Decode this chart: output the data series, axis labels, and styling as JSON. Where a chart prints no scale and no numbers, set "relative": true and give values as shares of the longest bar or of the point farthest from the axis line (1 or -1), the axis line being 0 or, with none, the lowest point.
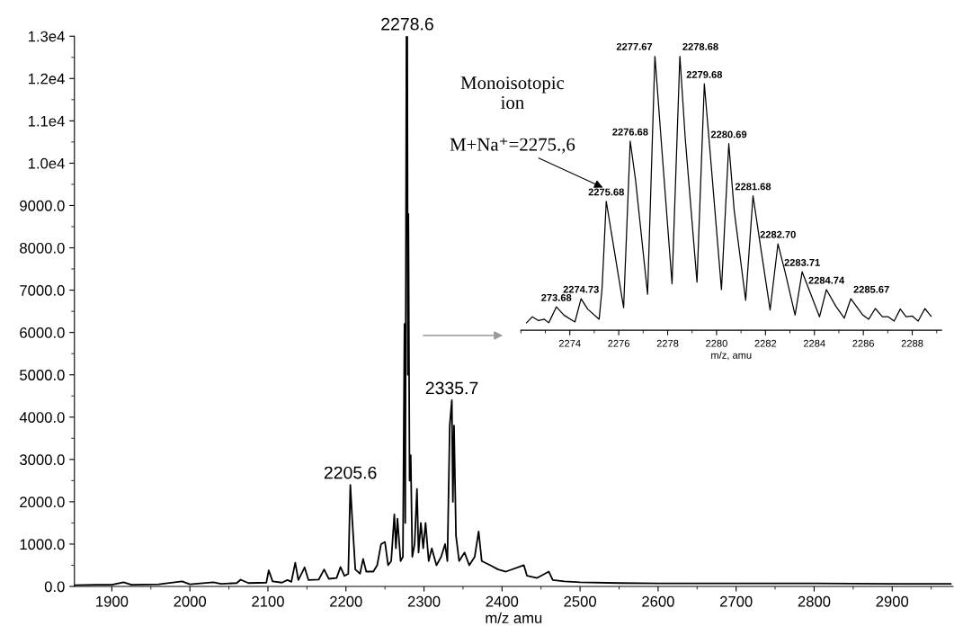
{
  "chart_data": [
    {
      "type": "line",
      "xlabel": "m/z amu",
      "xlim": [
        1852,
        2978
      ],
      "xticks": [
        1900,
        2000,
        2100,
        2200,
        2300,
        2400,
        2500,
        2600,
        2700,
        2800,
        2900
      ],
      "ylim": [
        0,
        13000
      ],
      "yticks": [
        {
          "value": 0,
          "label": "0.0"
        },
        {
          "value": 1000,
          "label": "1000.0"
        },
        {
          "value": 2000,
          "label": "2000.0"
        },
        {
          "value": 3000,
          "label": "3000.0"
        },
        {
          "value": 4000,
          "label": "4000.0"
        },
        {
          "value": 5000,
          "label": "5000.0"
        },
        {
          "value": 6000,
          "label": "6000.0"
        },
        {
          "value": 7000,
          "label": "7000.0"
        },
        {
          "value": 8000,
          "label": "8000.0"
        },
        {
          "value": 9000,
          "label": "9000.0"
        },
        {
          "value": 10000,
          "label": "1.0e4"
        },
        {
          "value": 11000,
          "label": "1.1e4"
        },
        {
          "value": 12000,
          "label": "1.2e4"
        },
        {
          "value": 13000,
          "label": "1.3e4"
        }
      ],
      "series": [
        {
          "color": "#000000",
          "x": [
            1852,
            1880,
            1900,
            1915,
            1925,
            1960,
            1990,
            2000,
            2030,
            2040,
            2060,
            2065,
            2075,
            2098,
            2101,
            2106,
            2118,
            2125,
            2130,
            2135,
            2139,
            2147,
            2152,
            2165,
            2172,
            2178,
            2188,
            2193,
            2198,
            2203,
            2205.6,
            2208,
            2212,
            2218,
            2222,
            2226,
            2235,
            2240,
            2245,
            2250,
            2254,
            2258,
            2262,
            2264,
            2266,
            2270,
            2273,
            2275,
            2276,
            2277.5,
            2278.6,
            2279.3,
            2280,
            2281.5,
            2283,
            2285,
            2288,
            2291,
            2293,
            2296,
            2299,
            2302,
            2306,
            2310,
            2316,
            2322,
            2327,
            2330,
            2333,
            2335.7,
            2337,
            2338.5,
            2341,
            2345,
            2352,
            2358,
            2365,
            2370,
            2374,
            2385,
            2395,
            2405,
            2428,
            2432,
            2445,
            2460,
            2465,
            2480,
            2500,
            2550,
            2600,
            2700,
            2800,
            2900,
            2975
          ],
          "values": [
            30,
            40,
            40,
            100,
            40,
            50,
            120,
            50,
            100,
            60,
            80,
            160,
            80,
            90,
            380,
            120,
            90,
            150,
            110,
            560,
            150,
            450,
            150,
            160,
            400,
            180,
            200,
            460,
            250,
            300,
            2400,
            1600,
            400,
            300,
            650,
            350,
            350,
            500,
            1000,
            1050,
            500,
            600,
            1700,
            900,
            1600,
            600,
            700,
            6200,
            1500,
            13000,
            13000,
            5000,
            8800,
            2500,
            3100,
            700,
            1000,
            2300,
            800,
            1500,
            900,
            1500,
            600,
            900,
            500,
            700,
            1000,
            600,
            3800,
            4400,
            2000,
            3800,
            1200,
            600,
            800,
            500,
            700,
            1300,
            600,
            500,
            400,
            350,
            500,
            250,
            200,
            350,
            150,
            120,
            100,
            80,
            70,
            70,
            70,
            60,
            60
          ]
        }
      ],
      "annotations": [
        {
          "text": "2278.6",
          "x": 2278.6,
          "y": 13000
        },
        {
          "text": "2205.6",
          "x": 2205.6,
          "y": 2400
        },
        {
          "text": "2335.7",
          "x": 2335.7,
          "y": 4400
        }
      ]
    },
    {
      "type": "line",
      "xlabel": "m/z, amu",
      "xlim": [
        2272.0,
        2289.2
      ],
      "xticks": [
        2274,
        2276,
        2278,
        2280,
        2282,
        2284,
        2286,
        2288
      ],
      "relative": true,
      "series": [
        {
          "color": "#000000",
          "x": [
            2272.23,
            2272.47,
            2272.72,
            2272.96,
            2273.14,
            2273.45,
            2273.76,
            2274.21,
            2274.46,
            2274.73,
            2275.2,
            2275.32,
            2275.49,
            2275.71,
            2276.2,
            2276.47,
            2276.69,
            2277.18,
            2277.48,
            2277.73,
            2278.18,
            2278.5,
            2278.72,
            2279.2,
            2279.5,
            2279.75,
            2280.2,
            2280.5,
            2280.72,
            2281.19,
            2281.49,
            2281.76,
            2282.19,
            2282.51,
            2282.8,
            2283.21,
            2283.5,
            2283.78,
            2284.21,
            2284.49,
            2284.88,
            2285.22,
            2285.49,
            2285.98,
            2286.22,
            2286.49,
            2286.78,
            2287.02,
            2287.26,
            2287.51,
            2287.75,
            2288.0,
            2288.24,
            2288.52,
            2288.77
          ],
          "values": [
            0.027,
            0.049,
            0.035,
            0.04,
            0.027,
            0.085,
            0.055,
            0.03,
            0.115,
            0.077,
            0.04,
            0.153,
            0.47,
            0.35,
            0.082,
            0.689,
            0.546,
            0.131,
            1.0,
            0.699,
            0.169,
            1.0,
            0.699,
            0.175,
            0.898,
            0.634,
            0.148,
            0.68,
            0.437,
            0.109,
            0.49,
            0.328,
            0.074,
            0.315,
            0.213,
            0.055,
            0.213,
            0.148,
            0.049,
            0.148,
            0.087,
            0.044,
            0.115,
            0.055,
            0.04,
            0.079,
            0.049,
            0.049,
            0.033,
            0.077,
            0.049,
            0.052,
            0.033,
            0.079,
            0.051
          ]
        }
      ],
      "annotations": [
        "Monoisotopic\nion",
        "M+Na⁺=2275.,6",
        {
          "text": "273.68",
          "x": 2273.45,
          "y": 0.085
        },
        {
          "text": "2274.73",
          "x": 2274.46,
          "y": 0.115
        },
        {
          "text": "2275.68",
          "x": 2275.49,
          "y": 0.47
        },
        {
          "text": "2276.68",
          "x": 2276.47,
          "y": 0.689
        },
        {
          "text": "2277.67",
          "x": 2277.48,
          "y": 1.0
        },
        {
          "text": "2278.68",
          "x": 2278.5,
          "y": 1.0
        },
        {
          "text": "2279.68",
          "x": 2279.5,
          "y": 0.898
        },
        {
          "text": "2280.69",
          "x": 2280.5,
          "y": 0.68
        },
        {
          "text": "2281.68",
          "x": 2281.49,
          "y": 0.49
        },
        {
          "text": "2282.70",
          "x": 2282.51,
          "y": 0.315
        },
        {
          "text": "2283.71",
          "x": 2283.5,
          "y": 0.213
        },
        {
          "text": "2284.74",
          "x": 2284.49,
          "y": 0.148
        },
        {
          "text": "2285.67",
          "x": 2285.49,
          "y": 0.115
        }
      ]
    }
  ]
}
